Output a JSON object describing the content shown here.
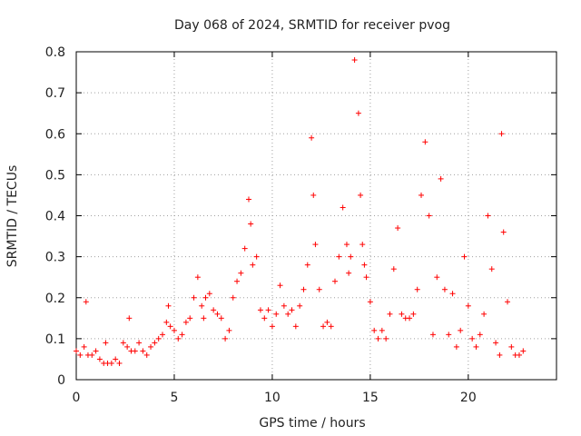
{
  "chart_data": {
    "type": "scatter",
    "title": "Day 068 of 2024, SRMTID for receiver pvog",
    "xlabel": "GPS time / hours",
    "ylabel": "SRMTID / TECUs",
    "xlim": [
      0,
      24.5
    ],
    "ylim": [
      0,
      0.8
    ],
    "xticks": [
      0,
      5,
      10,
      15,
      20
    ],
    "xtick_labels": [
      "0",
      "5",
      "10",
      "15",
      "20"
    ],
    "yticks": [
      0,
      0.1,
      0.2,
      0.3,
      0.4,
      0.5,
      0.6,
      0.7,
      0.8
    ],
    "ytick_labels": [
      "0",
      "0.1",
      "0.2",
      "0.3",
      "0.4",
      "0.5",
      "0.6",
      "0.7",
      "0.8"
    ],
    "grid": true,
    "marker": "+",
    "series": [
      {
        "name": "SRMTID",
        "color": "#ff0000",
        "x": [
          0.0,
          0.2,
          0.4,
          0.5,
          0.6,
          0.8,
          1.0,
          1.2,
          1.4,
          1.5,
          1.6,
          1.8,
          2.0,
          2.2,
          2.4,
          2.6,
          2.7,
          2.8,
          3.0,
          3.2,
          3.4,
          3.6,
          3.8,
          4.0,
          4.2,
          4.4,
          4.6,
          4.7,
          4.8,
          5.0,
          5.2,
          5.4,
          5.6,
          5.8,
          6.0,
          6.2,
          6.4,
          6.5,
          6.6,
          6.8,
          7.0,
          7.2,
          7.4,
          7.6,
          7.8,
          8.0,
          8.2,
          8.4,
          8.6,
          8.8,
          8.9,
          9.0,
          9.2,
          9.4,
          9.6,
          9.8,
          10.0,
          10.2,
          10.4,
          10.6,
          10.8,
          11.0,
          11.2,
          11.4,
          11.6,
          11.8,
          12.0,
          12.1,
          12.2,
          12.4,
          12.6,
          12.8,
          13.0,
          13.2,
          13.4,
          13.6,
          13.8,
          13.9,
          14.0,
          14.2,
          14.4,
          14.5,
          14.6,
          14.7,
          14.8,
          15.0,
          15.2,
          15.4,
          15.6,
          15.8,
          16.0,
          16.2,
          16.4,
          16.6,
          16.8,
          17.0,
          17.2,
          17.4,
          17.6,
          17.8,
          18.0,
          18.2,
          18.4,
          18.6,
          18.8,
          19.0,
          19.2,
          19.4,
          19.6,
          19.8,
          20.0,
          20.2,
          20.4,
          20.6,
          20.8,
          21.0,
          21.2,
          21.4,
          21.6,
          21.7,
          21.8,
          22.0,
          22.2,
          22.4,
          22.6,
          22.8
        ],
        "y": [
          0.07,
          0.06,
          0.08,
          0.19,
          0.06,
          0.06,
          0.07,
          0.05,
          0.04,
          0.09,
          0.04,
          0.04,
          0.05,
          0.04,
          0.09,
          0.08,
          0.15,
          0.07,
          0.07,
          0.09,
          0.07,
          0.06,
          0.08,
          0.09,
          0.1,
          0.11,
          0.14,
          0.18,
          0.13,
          0.12,
          0.1,
          0.11,
          0.14,
          0.15,
          0.2,
          0.25,
          0.18,
          0.15,
          0.2,
          0.21,
          0.17,
          0.16,
          0.15,
          0.1,
          0.12,
          0.2,
          0.24,
          0.26,
          0.32,
          0.44,
          0.38,
          0.28,
          0.3,
          0.17,
          0.15,
          0.17,
          0.13,
          0.16,
          0.23,
          0.18,
          0.16,
          0.17,
          0.13,
          0.18,
          0.22,
          0.28,
          0.59,
          0.45,
          0.33,
          0.22,
          0.13,
          0.14,
          0.13,
          0.24,
          0.3,
          0.42,
          0.33,
          0.26,
          0.3,
          0.78,
          0.65,
          0.45,
          0.33,
          0.28,
          0.25,
          0.19,
          0.12,
          0.1,
          0.12,
          0.1,
          0.16,
          0.27,
          0.37,
          0.16,
          0.15,
          0.15,
          0.16,
          0.22,
          0.45,
          0.58,
          0.4,
          0.11,
          0.25,
          0.49,
          0.22,
          0.11,
          0.21,
          0.08,
          0.12,
          0.3,
          0.18,
          0.1,
          0.08,
          0.11,
          0.16,
          0.4,
          0.27,
          0.09,
          0.06,
          0.6,
          0.36,
          0.19,
          0.08,
          0.06,
          0.06,
          0.07
        ]
      }
    ]
  }
}
